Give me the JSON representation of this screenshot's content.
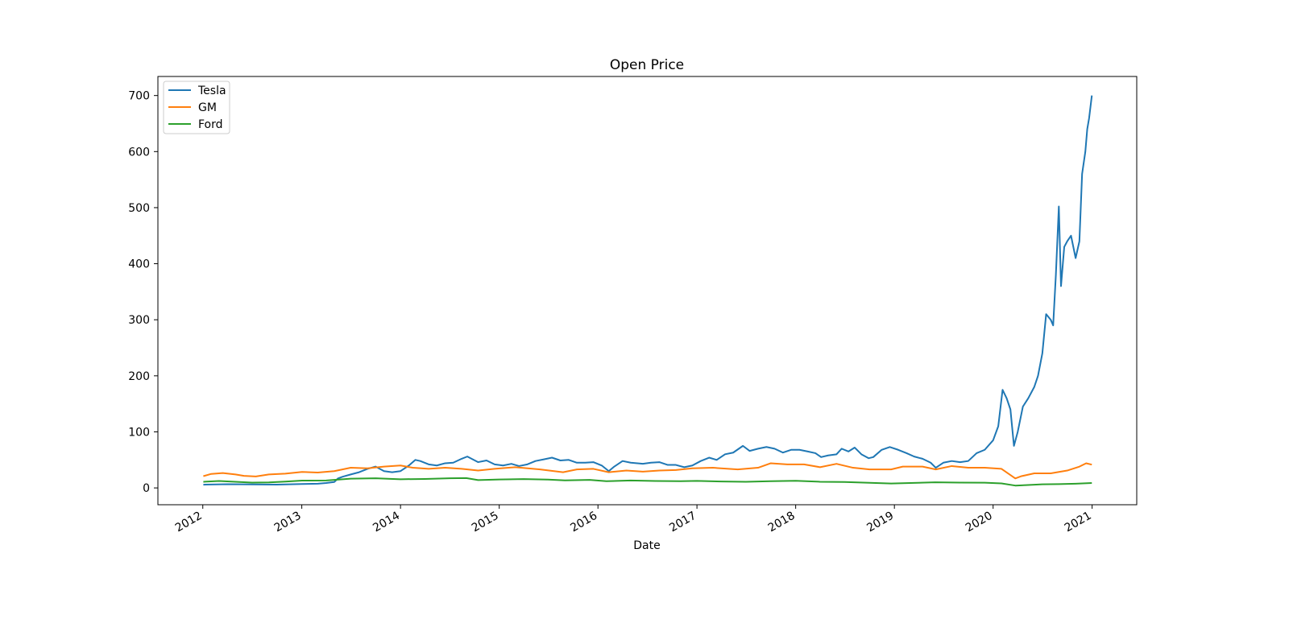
{
  "chart_data": {
    "type": "line",
    "title": "Open Price",
    "xlabel": "Date",
    "ylabel": "",
    "x_ticks": [
      "2012",
      "2013",
      "2014",
      "2015",
      "2016",
      "2017",
      "2018",
      "2019",
      "2020",
      "2021"
    ],
    "y_ticks": [
      0,
      100,
      200,
      300,
      400,
      500,
      600,
      700
    ],
    "ylim": [
      -30,
      734
    ],
    "xlim": [
      "2011-07-19",
      "2021-06-15"
    ],
    "grid": false,
    "legend": "upper-left",
    "series": [
      {
        "name": "Tesla",
        "color": "#1f77b4",
        "points": [
          [
            "2012-01-03",
            5.8
          ],
          [
            "2012-04-01",
            6.7
          ],
          [
            "2012-07-01",
            6.2
          ],
          [
            "2012-10-01",
            5.9
          ],
          [
            "2013-01-02",
            7.0
          ],
          [
            "2013-03-01",
            7.6
          ],
          [
            "2013-04-01",
            8.7
          ],
          [
            "2013-05-01",
            10.5
          ],
          [
            "2013-05-15",
            17.0
          ],
          [
            "2013-06-01",
            20.0
          ],
          [
            "2013-07-01",
            24.0
          ],
          [
            "2013-08-01",
            28.0
          ],
          [
            "2013-09-01",
            34.0
          ],
          [
            "2013-10-01",
            38.0
          ],
          [
            "2013-11-01",
            30.0
          ],
          [
            "2013-12-01",
            28.0
          ],
          [
            "2014-01-01",
            30.0
          ],
          [
            "2014-02-01",
            40.0
          ],
          [
            "2014-02-25",
            50.0
          ],
          [
            "2014-03-15",
            48.0
          ],
          [
            "2014-04-15",
            42.0
          ],
          [
            "2014-05-15",
            40.0
          ],
          [
            "2014-06-15",
            44.0
          ],
          [
            "2014-07-15",
            45.0
          ],
          [
            "2014-08-15",
            52.0
          ],
          [
            "2014-09-05",
            56.0
          ],
          [
            "2014-10-15",
            46.0
          ],
          [
            "2014-11-15",
            49.0
          ],
          [
            "2014-12-15",
            42.0
          ],
          [
            "2015-01-15",
            40.0
          ],
          [
            "2015-02-15",
            43.0
          ],
          [
            "2015-03-15",
            39.0
          ],
          [
            "2015-04-15",
            42.0
          ],
          [
            "2015-05-15",
            48.0
          ],
          [
            "2015-06-15",
            51.0
          ],
          [
            "2015-07-15",
            54.0
          ],
          [
            "2015-08-15",
            49.0
          ],
          [
            "2015-09-15",
            50.0
          ],
          [
            "2015-10-15",
            45.0
          ],
          [
            "2015-11-15",
            45.0
          ],
          [
            "2015-12-15",
            46.0
          ],
          [
            "2016-01-15",
            40.0
          ],
          [
            "2016-02-10",
            30.0
          ],
          [
            "2016-03-01",
            38.0
          ],
          [
            "2016-04-01",
            48.0
          ],
          [
            "2016-05-01",
            45.0
          ],
          [
            "2016-06-15",
            43.0
          ],
          [
            "2016-07-15",
            45.0
          ],
          [
            "2016-08-15",
            46.0
          ],
          [
            "2016-09-15",
            41.0
          ],
          [
            "2016-10-15",
            41.0
          ],
          [
            "2016-11-15",
            37.0
          ],
          [
            "2016-12-15",
            40.0
          ],
          [
            "2017-01-15",
            48.0
          ],
          [
            "2017-02-15",
            54.0
          ],
          [
            "2017-03-15",
            50.0
          ],
          [
            "2017-04-15",
            60.0
          ],
          [
            "2017-05-15",
            63.0
          ],
          [
            "2017-06-20",
            75.0
          ],
          [
            "2017-07-15",
            66.0
          ],
          [
            "2017-08-15",
            70.0
          ],
          [
            "2017-09-15",
            73.0
          ],
          [
            "2017-10-15",
            70.0
          ],
          [
            "2017-11-15",
            63.0
          ],
          [
            "2017-12-15",
            68.0
          ],
          [
            "2018-01-15",
            68.0
          ],
          [
            "2018-02-15",
            65.0
          ],
          [
            "2018-03-15",
            62.0
          ],
          [
            "2018-04-05",
            55.0
          ],
          [
            "2018-05-01",
            58.0
          ],
          [
            "2018-06-01",
            60.0
          ],
          [
            "2018-06-20",
            70.0
          ],
          [
            "2018-07-15",
            65.0
          ],
          [
            "2018-08-07",
            72.0
          ],
          [
            "2018-09-01",
            60.0
          ],
          [
            "2018-09-28",
            53.0
          ],
          [
            "2018-10-15",
            55.0
          ],
          [
            "2018-11-15",
            68.0
          ],
          [
            "2018-12-15",
            73.0
          ],
          [
            "2019-01-15",
            68.0
          ],
          [
            "2019-02-15",
            62.0
          ],
          [
            "2019-03-15",
            56.0
          ],
          [
            "2019-04-15",
            52.0
          ],
          [
            "2019-05-15",
            45.0
          ],
          [
            "2019-06-03",
            36.0
          ],
          [
            "2019-07-01",
            45.0
          ],
          [
            "2019-08-01",
            48.0
          ],
          [
            "2019-09-01",
            46.0
          ],
          [
            "2019-10-01",
            48.0
          ],
          [
            "2019-11-01",
            62.0
          ],
          [
            "2019-12-01",
            68.0
          ],
          [
            "2020-01-01",
            85.0
          ],
          [
            "2020-01-20",
            110.0
          ],
          [
            "2020-02-05",
            175.0
          ],
          [
            "2020-02-20",
            160.0
          ],
          [
            "2020-03-05",
            140.0
          ],
          [
            "2020-03-18",
            75.0
          ],
          [
            "2020-04-01",
            100.0
          ],
          [
            "2020-04-20",
            145.0
          ],
          [
            "2020-05-10",
            160.0
          ],
          [
            "2020-06-01",
            180.0
          ],
          [
            "2020-06-15",
            200.0
          ],
          [
            "2020-07-01",
            240.0
          ],
          [
            "2020-07-15",
            310.0
          ],
          [
            "2020-08-01",
            300.0
          ],
          [
            "2020-08-10",
            290.0
          ],
          [
            "2020-08-20",
            380.0
          ],
          [
            "2020-08-31",
            502.0
          ],
          [
            "2020-09-08",
            360.0
          ],
          [
            "2020-09-20",
            430.0
          ],
          [
            "2020-10-01",
            440.0
          ],
          [
            "2020-10-15",
            450.0
          ],
          [
            "2020-11-01",
            410.0
          ],
          [
            "2020-11-15",
            440.0
          ],
          [
            "2020-11-25",
            560.0
          ],
          [
            "2020-12-07",
            600.0
          ],
          [
            "2020-12-14",
            640.0
          ],
          [
            "2020-12-21",
            660.0
          ],
          [
            "2020-12-31",
            700.0
          ]
        ]
      },
      {
        "name": "GM",
        "color": "#ff7f0e",
        "points": [
          [
            "2012-01-03",
            21.0
          ],
          [
            "2012-02-01",
            25.0
          ],
          [
            "2012-03-15",
            26.5
          ],
          [
            "2012-05-01",
            24.0
          ],
          [
            "2012-06-01",
            21.5
          ],
          [
            "2012-07-15",
            20.5
          ],
          [
            "2012-09-01",
            24.0
          ],
          [
            "2012-11-01",
            25.5
          ],
          [
            "2013-01-02",
            28.5
          ],
          [
            "2013-03-01",
            27.5
          ],
          [
            "2013-05-01",
            30.0
          ],
          [
            "2013-07-01",
            36.0
          ],
          [
            "2013-09-01",
            35.0
          ],
          [
            "2013-11-01",
            38.0
          ],
          [
            "2014-01-01",
            40.0
          ],
          [
            "2014-02-15",
            36.0
          ],
          [
            "2014-04-15",
            34.0
          ],
          [
            "2014-06-15",
            36.0
          ],
          [
            "2014-08-15",
            34.0
          ],
          [
            "2014-10-15",
            31.0
          ],
          [
            "2014-12-15",
            34.0
          ],
          [
            "2015-03-01",
            37.0
          ],
          [
            "2015-06-01",
            33.0
          ],
          [
            "2015-08-25",
            28.0
          ],
          [
            "2015-10-15",
            33.0
          ],
          [
            "2015-12-15",
            34.0
          ],
          [
            "2016-02-10",
            28.0
          ],
          [
            "2016-04-15",
            31.0
          ],
          [
            "2016-06-15",
            29.0
          ],
          [
            "2016-08-15",
            31.0
          ],
          [
            "2016-10-15",
            32.0
          ],
          [
            "2016-12-15",
            35.0
          ],
          [
            "2017-03-01",
            36.0
          ],
          [
            "2017-06-01",
            33.0
          ],
          [
            "2017-08-15",
            36.0
          ],
          [
            "2017-10-01",
            44.0
          ],
          [
            "2017-12-01",
            42.0
          ],
          [
            "2018-02-01",
            42.0
          ],
          [
            "2018-04-01",
            37.0
          ],
          [
            "2018-06-01",
            43.0
          ],
          [
            "2018-08-01",
            36.0
          ],
          [
            "2018-10-01",
            33.0
          ],
          [
            "2018-12-20",
            33.0
          ],
          [
            "2019-02-01",
            38.0
          ],
          [
            "2019-04-15",
            38.0
          ],
          [
            "2019-06-03",
            33.0
          ],
          [
            "2019-08-01",
            39.0
          ],
          [
            "2019-10-01",
            36.0
          ],
          [
            "2019-12-01",
            36.0
          ],
          [
            "2020-02-01",
            34.0
          ],
          [
            "2020-03-23",
            17.0
          ],
          [
            "2020-04-15",
            21.0
          ],
          [
            "2020-06-01",
            26.0
          ],
          [
            "2020-08-01",
            26.0
          ],
          [
            "2020-10-01",
            31.0
          ],
          [
            "2020-11-15",
            38.0
          ],
          [
            "2020-12-10",
            44.0
          ],
          [
            "2020-12-31",
            41.5
          ]
        ]
      },
      {
        "name": "Ford",
        "color": "#2ca02c",
        "points": [
          [
            "2012-01-03",
            11.0
          ],
          [
            "2012-03-01",
            12.3
          ],
          [
            "2012-05-01",
            11.0
          ],
          [
            "2012-07-01",
            9.5
          ],
          [
            "2012-09-01",
            9.8
          ],
          [
            "2012-11-01",
            11.2
          ],
          [
            "2013-01-02",
            13.0
          ],
          [
            "2013-04-01",
            13.2
          ],
          [
            "2013-07-01",
            16.5
          ],
          [
            "2013-10-01",
            17.2
          ],
          [
            "2014-01-01",
            15.5
          ],
          [
            "2014-04-01",
            16.0
          ],
          [
            "2014-07-01",
            17.2
          ],
          [
            "2014-09-01",
            17.5
          ],
          [
            "2014-10-15",
            14.0
          ],
          [
            "2015-01-01",
            15.0
          ],
          [
            "2015-04-01",
            15.8
          ],
          [
            "2015-07-01",
            14.8
          ],
          [
            "2015-09-01",
            13.5
          ],
          [
            "2015-12-01",
            14.3
          ],
          [
            "2016-02-01",
            12.0
          ],
          [
            "2016-05-01",
            13.3
          ],
          [
            "2016-08-01",
            12.3
          ],
          [
            "2016-11-01",
            12.0
          ],
          [
            "2017-01-01",
            12.5
          ],
          [
            "2017-04-01",
            11.5
          ],
          [
            "2017-07-01",
            11.0
          ],
          [
            "2017-10-01",
            12.0
          ],
          [
            "2018-01-01",
            12.8
          ],
          [
            "2018-04-01",
            11.0
          ],
          [
            "2018-07-01",
            10.5
          ],
          [
            "2018-10-01",
            9.2
          ],
          [
            "2018-12-20",
            7.8
          ],
          [
            "2019-03-01",
            8.8
          ],
          [
            "2019-06-01",
            10.0
          ],
          [
            "2019-09-01",
            9.5
          ],
          [
            "2019-12-01",
            9.3
          ],
          [
            "2020-02-01",
            8.0
          ],
          [
            "2020-03-23",
            4.2
          ],
          [
            "2020-05-01",
            5.0
          ],
          [
            "2020-07-01",
            6.5
          ],
          [
            "2020-09-01",
            6.8
          ],
          [
            "2020-11-01",
            7.5
          ],
          [
            "2020-12-31",
            8.8
          ]
        ]
      }
    ]
  }
}
